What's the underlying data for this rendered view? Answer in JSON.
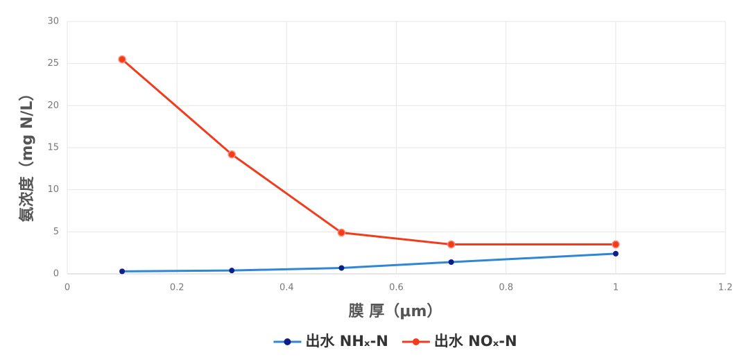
{
  "chart_data": {
    "type": "line",
    "x_label": "膜 厚（μm）",
    "y_label": "氨浓度（mg N/L）",
    "x": [
      0.1,
      0.3,
      0.5,
      0.7,
      1
    ],
    "series": [
      {
        "name": "出水 NHₓ-N",
        "color": "#2f86d6",
        "marker_color": "#0b1f8a",
        "values": [
          0.3,
          0.4,
          0.7,
          1.4,
          2.4
        ]
      },
      {
        "name": "出水 NOₓ-N",
        "color": "#f23a1c",
        "marker_color": "#f23a1c",
        "values": [
          25.5,
          14.2,
          4.9,
          3.5,
          3.5
        ]
      }
    ],
    "xlim": [
      0,
      1.2
    ],
    "xticks": [
      0,
      0.2,
      0.4,
      0.6,
      0.8,
      1,
      1.2
    ],
    "ylim": [
      0,
      30
    ],
    "yticks": [
      0,
      5,
      10,
      15,
      20,
      25,
      30
    ],
    "grid": true,
    "legend": "bottom"
  }
}
